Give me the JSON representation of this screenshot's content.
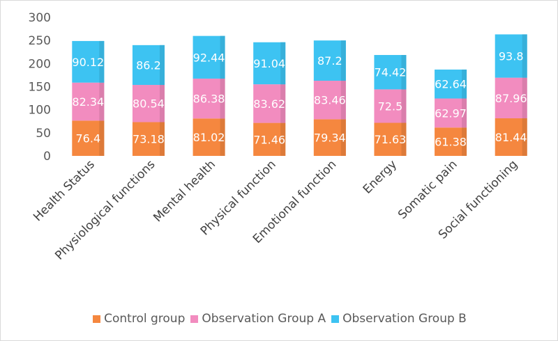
{
  "chart_data": {
    "type": "bar",
    "stacked": true,
    "title": "",
    "xlabel": "",
    "ylabel": "",
    "ylim": [
      0,
      300
    ],
    "yticks": [
      0,
      50,
      100,
      150,
      200,
      250,
      300
    ],
    "grid": false,
    "legend_position": "bottom",
    "categories": [
      "Health Status",
      "Physiological functions",
      "Mental health",
      "Physical function",
      "Emotional function",
      "Energy",
      "Somatic pain",
      "Social functioning"
    ],
    "series": [
      {
        "name": "Control group",
        "color": "#f5873f",
        "values": [
          76.4,
          73.18,
          81.02,
          71.46,
          79.34,
          71.63,
          61.38,
          81.44
        ]
      },
      {
        "name": "Observation Group A",
        "color": "#f28cbf",
        "values": [
          82.34,
          80.54,
          86.38,
          83.62,
          83.46,
          72.5,
          62.97,
          87.96
        ]
      },
      {
        "name": "Observation Group B",
        "color": "#3dc3f2",
        "values": [
          90.12,
          86.2,
          92.44,
          91.04,
          87.2,
          74.42,
          62.64,
          93.8
        ]
      }
    ],
    "data_labels": [
      [
        "76.4",
        "73.18",
        "81.02",
        "71.46",
        "79.34",
        "71.63",
        "61.38",
        "81.44"
      ],
      [
        "82.34",
        "80.54",
        "86.38",
        "83.62",
        "83.46",
        "72.5",
        "62.97",
        "87.96"
      ],
      [
        "90.12",
        "86.2",
        "92.44",
        "91.04",
        "87.2",
        "74.42",
        "62.64",
        "93.8"
      ]
    ]
  }
}
